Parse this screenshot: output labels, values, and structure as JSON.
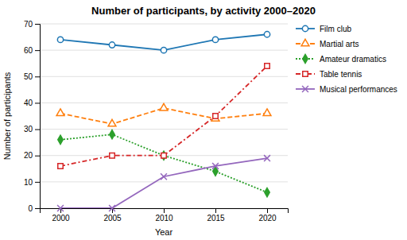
{
  "chart_data": {
    "type": "line",
    "title": "Number of participants, by activity 2000–2020",
    "xlabel": "Year",
    "ylabel": "Number of participants",
    "x": [
      2000,
      2005,
      2010,
      2015,
      2020
    ],
    "xlim": [
      1998,
      2022
    ],
    "xticks": [
      2000,
      2005,
      2010,
      2015,
      2020
    ],
    "ylim": [
      0,
      70
    ],
    "yticks": [
      0,
      10,
      20,
      30,
      40,
      50,
      60,
      70
    ],
    "grid": true,
    "legend": "right",
    "series": [
      {
        "name": "Film club",
        "values": [
          64,
          62,
          60,
          64,
          66
        ],
        "marker": "circle",
        "line_style": "solid"
      },
      {
        "name": "Martial arts",
        "values": [
          36,
          32,
          38,
          34,
          36
        ],
        "marker": "triangle",
        "line_style": "dashed"
      },
      {
        "name": "Amateur dramatics",
        "values": [
          26,
          28,
          20,
          14,
          6
        ],
        "marker": "diamond",
        "line_style": "dotted"
      },
      {
        "name": "Table tennis",
        "values": [
          16,
          20,
          20,
          35,
          54
        ],
        "marker": "square",
        "line_style": "dashdot"
      },
      {
        "name": "Musical performances",
        "values": [
          0,
          0,
          12,
          16,
          19
        ],
        "marker": "x",
        "line_style": "solid"
      }
    ]
  }
}
